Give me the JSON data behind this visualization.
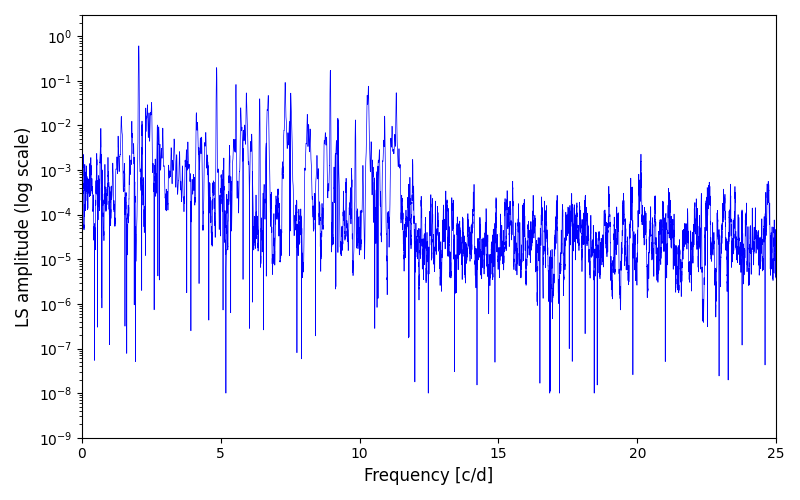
{
  "title": "",
  "xlabel": "Frequency [c/d]",
  "ylabel": "LS amplitude (log scale)",
  "xlim": [
    0,
    25
  ],
  "ylim": [
    1e-09,
    3.0
  ],
  "line_color": "#0000ff",
  "line_width": 0.5,
  "yscale": "log",
  "seed": 12345,
  "n_points": 15000,
  "freq_max": 25.0,
  "background_color": "#ffffff",
  "figsize": [
    8.0,
    5.0
  ],
  "dpi": 100
}
